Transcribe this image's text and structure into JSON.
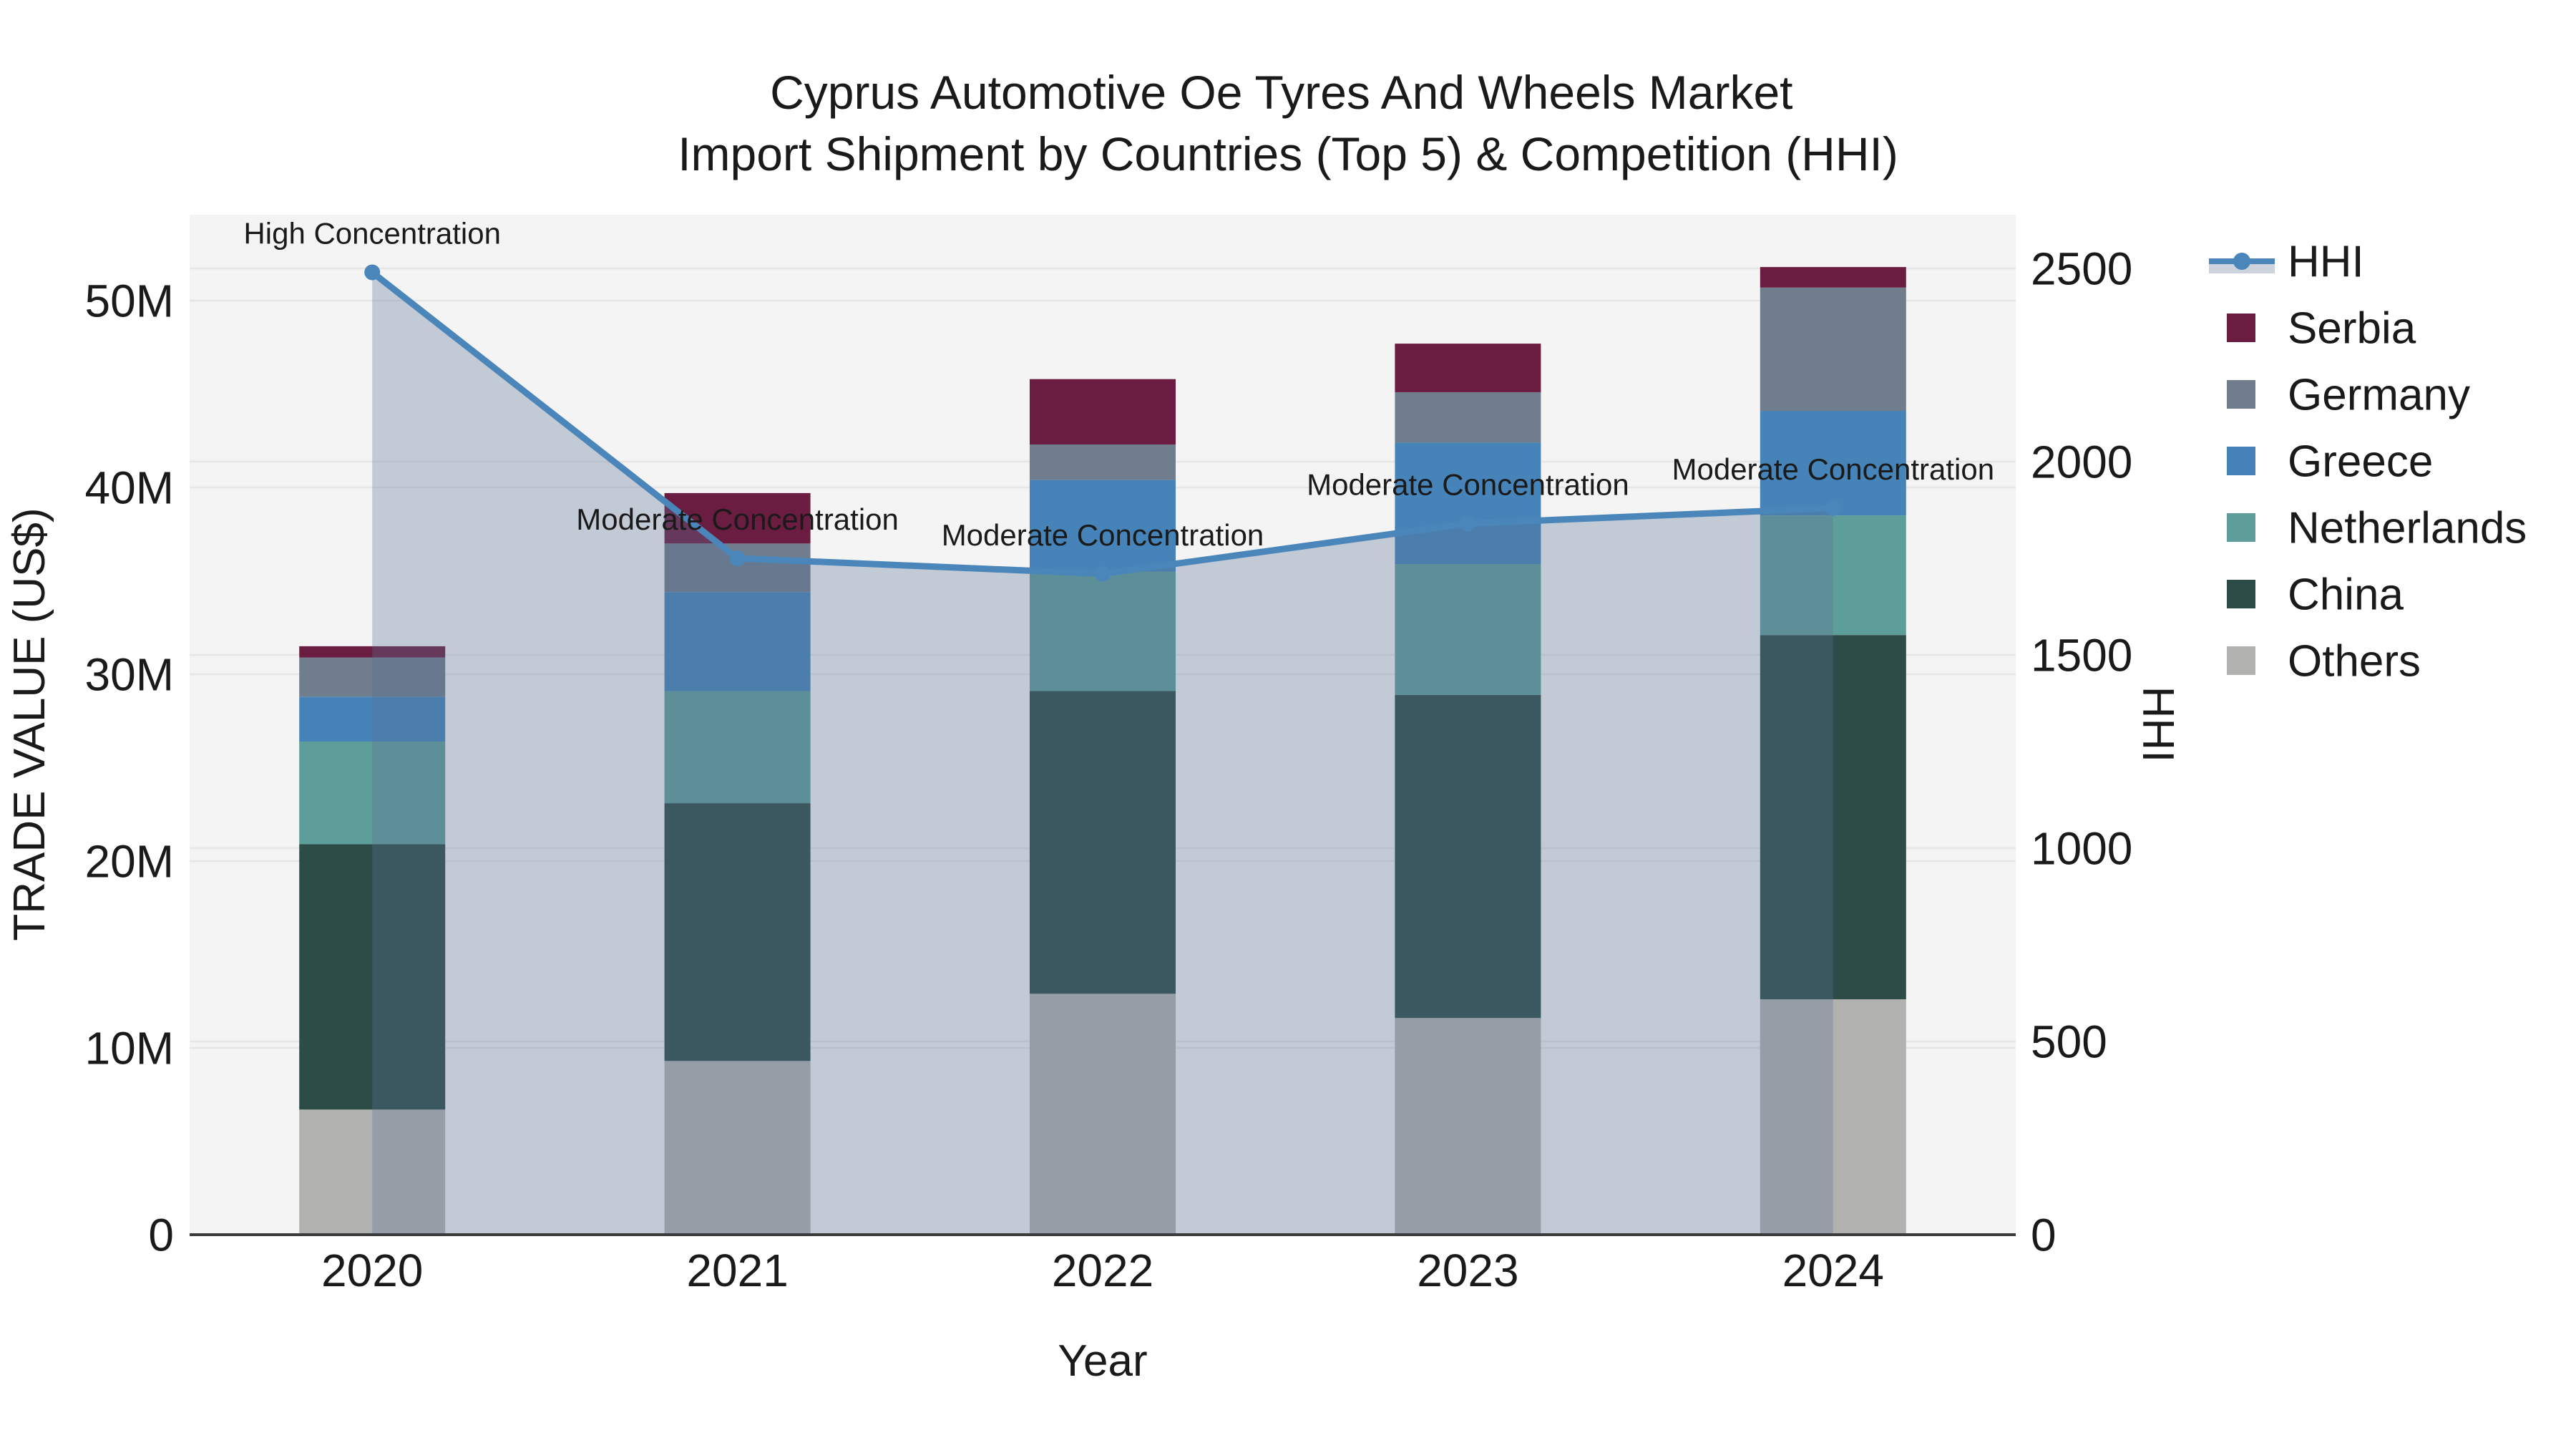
{
  "title": {
    "line1": "Cyprus Automotive Oe Tyres And Wheels Market",
    "line2": "Import Shipment by Countries (Top 5) & Competition (HHI)"
  },
  "axes": {
    "x_title": "Year",
    "y_left_title": "TRADE VALUE (US$)",
    "y_right_title": "HHI",
    "y_left_ticks": [
      {
        "value": 0,
        "label": "0"
      },
      {
        "value": 10,
        "label": "10M"
      },
      {
        "value": 20,
        "label": "20M"
      },
      {
        "value": 30,
        "label": "30M"
      },
      {
        "value": 40,
        "label": "40M"
      },
      {
        "value": 50,
        "label": "50M"
      }
    ],
    "y_right_ticks": [
      {
        "value": 0,
        "label": "0"
      },
      {
        "value": 500,
        "label": "500"
      },
      {
        "value": 1000,
        "label": "1000"
      },
      {
        "value": 1500,
        "label": "1500"
      },
      {
        "value": 2000,
        "label": "2000"
      },
      {
        "value": 2500,
        "label": "2500"
      }
    ]
  },
  "legend": [
    {
      "label": "HHI",
      "type": "line",
      "color": "#4a86ba"
    },
    {
      "label": "Serbia",
      "type": "square",
      "color": "#6b1d41"
    },
    {
      "label": "Germany",
      "type": "square",
      "color": "#6f7d8c"
    },
    {
      "label": "Greece",
      "type": "square",
      "color": "#4583b8"
    },
    {
      "label": "Netherlands",
      "type": "square",
      "color": "#5d9d9a"
    },
    {
      "label": "China",
      "type": "square",
      "color": "#2d4b47"
    },
    {
      "label": "Others",
      "type": "square",
      "color": "#b1b1b0"
    }
  ],
  "colors": {
    "hhi_line": "#4a86ba",
    "hhi_area_fill": "rgba(90,115,150,0.32)",
    "hhi_legend_band": "#ccd3dc",
    "plot_background": "#f4f4f4",
    "gridline": "#e6e6e6",
    "axis_line": "#3b3b3b",
    "text": "#1a1a1a"
  },
  "chart_data": {
    "type": "combo-stacked-bar-line",
    "title": "Cyprus Automotive Oe Tyres And Wheels Market Import Shipment by Countries (Top 5) & Competition (HHI)",
    "xlabel": "Year",
    "ylabel": "TRADE VALUE (US$)",
    "y2label": "HHI",
    "categories": [
      "2020",
      "2021",
      "2022",
      "2023",
      "2024"
    ],
    "bar_unit": "million US$",
    "bar_stack_order_bottom_to_top": [
      "Others",
      "China",
      "Netherlands",
      "Greece",
      "Germany",
      "Serbia"
    ],
    "bar_series": [
      {
        "name": "Others",
        "values": [
          6.7,
          9.3,
          12.9,
          11.6,
          12.6
        ]
      },
      {
        "name": "China",
        "values": [
          14.2,
          13.8,
          16.2,
          17.3,
          19.5
        ]
      },
      {
        "name": "Netherlands",
        "values": [
          5.5,
          6.0,
          6.4,
          7.0,
          6.4
        ]
      },
      {
        "name": "Greece",
        "values": [
          2.4,
          5.3,
          4.9,
          6.5,
          5.6
        ]
      },
      {
        "name": "Germany",
        "values": [
          2.1,
          2.6,
          1.9,
          2.7,
          6.6
        ]
      },
      {
        "name": "Serbia",
        "values": [
          0.6,
          2.7,
          3.5,
          2.6,
          1.1
        ]
      }
    ],
    "bar_totals": [
      31.5,
      39.7,
      45.8,
      47.7,
      51.8
    ],
    "line_series": {
      "name": "HHI",
      "values": [
        2490,
        1750,
        1710,
        1840,
        1880
      ]
    },
    "annotations": [
      {
        "category": "2020",
        "text": "High Concentration"
      },
      {
        "category": "2021",
        "text": "Moderate Concentration"
      },
      {
        "category": "2022",
        "text": "Moderate Concentration"
      },
      {
        "category": "2023",
        "text": "Moderate Concentration"
      },
      {
        "category": "2024",
        "text": "Moderate Concentration"
      }
    ],
    "ylim": [
      0,
      54.6
    ],
    "y2lim": [
      0,
      2639
    ],
    "grid": true,
    "legend_position": "right"
  }
}
